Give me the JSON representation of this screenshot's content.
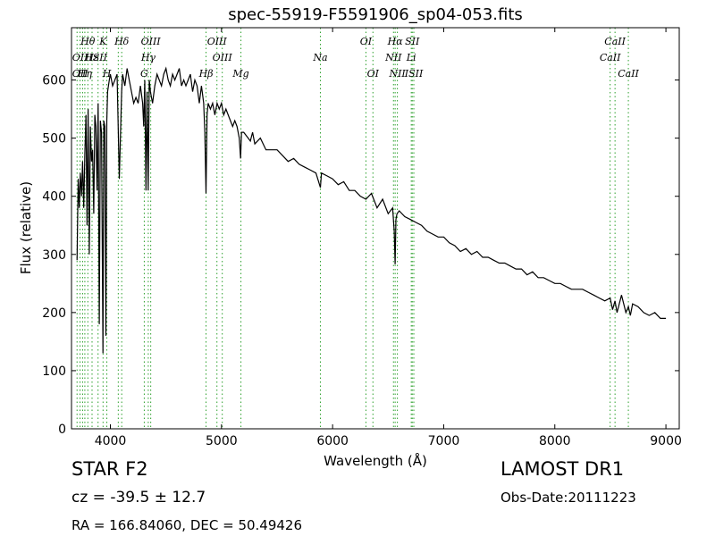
{
  "chart_data": {
    "type": "line",
    "title": "spec-55919-F5591906_sp04-053.fits",
    "xlabel": "Wavelength (Å)",
    "ylabel": "Flux (relative)",
    "xlim": [
      3650,
      9120
    ],
    "ylim": [
      0,
      690
    ],
    "xticks": [
      4000,
      5000,
      6000,
      7000,
      8000,
      9000
    ],
    "yticks": [
      0,
      100,
      200,
      300,
      400,
      500,
      600
    ],
    "grid": false,
    "series": [
      {
        "color": "#000000",
        "x": [
          3700,
          3710,
          3720,
          3730,
          3740,
          3750,
          3760,
          3770,
          3780,
          3790,
          3800,
          3810,
          3820,
          3830,
          3840,
          3850,
          3860,
          3870,
          3880,
          3890,
          3900,
          3910,
          3920,
          3933,
          3940,
          3950,
          3960,
          3968,
          3975,
          3990,
          4000,
          4020,
          4040,
          4060,
          4080,
          4101,
          4110,
          4130,
          4150,
          4170,
          4190,
          4210,
          4230,
          4250,
          4270,
          4290,
          4300,
          4310,
          4320,
          4330,
          4340,
          4350,
          4360,
          4380,
          4400,
          4420,
          4440,
          4460,
          4480,
          4500,
          4520,
          4540,
          4560,
          4580,
          4600,
          4620,
          4640,
          4660,
          4680,
          4700,
          4720,
          4740,
          4760,
          4780,
          4800,
          4820,
          4840,
          4850,
          4861,
          4870,
          4880,
          4900,
          4920,
          4940,
          4960,
          4980,
          5000,
          5020,
          5040,
          5060,
          5080,
          5100,
          5120,
          5140,
          5160,
          5172,
          5180,
          5200,
          5220,
          5240,
          5260,
          5280,
          5300,
          5350,
          5400,
          5450,
          5500,
          5550,
          5600,
          5650,
          5700,
          5750,
          5800,
          5850,
          5890,
          5900,
          5950,
          6000,
          6050,
          6100,
          6150,
          6200,
          6250,
          6300,
          6350,
          6400,
          6450,
          6500,
          6540,
          6555,
          6563,
          6570,
          6580,
          6600,
          6650,
          6700,
          6750,
          6800,
          6850,
          6900,
          6950,
          7000,
          7050,
          7100,
          7150,
          7200,
          7250,
          7300,
          7350,
          7400,
          7450,
          7500,
          7550,
          7600,
          7650,
          7700,
          7750,
          7800,
          7850,
          7900,
          7950,
          8000,
          8050,
          8100,
          8150,
          8200,
          8250,
          8300,
          8350,
          8400,
          8450,
          8498,
          8520,
          8542,
          8560,
          8600,
          8640,
          8662,
          8680,
          8700,
          8750,
          8800,
          8850,
          8900,
          8950,
          9000
        ],
        "y": [
          290,
          430,
          380,
          440,
          400,
          460,
          380,
          470,
          540,
          350,
          550,
          300,
          520,
          460,
          480,
          370,
          540,
          520,
          410,
          560,
          180,
          530,
          510,
          130,
          530,
          520,
          160,
          530,
          580,
          600,
          610,
          590,
          600,
          610,
          430,
          580,
          610,
          590,
          620,
          600,
          580,
          560,
          570,
          560,
          590,
          560,
          520,
          600,
          410,
          580,
          410,
          600,
          580,
          560,
          590,
          610,
          600,
          590,
          610,
          620,
          600,
          590,
          610,
          600,
          610,
          620,
          590,
          600,
          590,
          600,
          610,
          580,
          600,
          590,
          560,
          590,
          560,
          510,
          405,
          540,
          560,
          550,
          560,
          540,
          560,
          550,
          560,
          540,
          550,
          540,
          530,
          520,
          530,
          520,
          500,
          465,
          510,
          510,
          505,
          500,
          495,
          510,
          490,
          500,
          480,
          480,
          480,
          470,
          460,
          465,
          455,
          450,
          445,
          440,
          415,
          440,
          435,
          430,
          420,
          425,
          410,
          410,
          400,
          395,
          405,
          380,
          395,
          370,
          380,
          340,
          283,
          360,
          370,
          375,
          365,
          360,
          355,
          350,
          340,
          335,
          330,
          330,
          320,
          315,
          305,
          310,
          300,
          305,
          295,
          295,
          290,
          285,
          285,
          280,
          275,
          275,
          265,
          270,
          260,
          260,
          255,
          250,
          250,
          245,
          240,
          240,
          240,
          235,
          230,
          225,
          220,
          225,
          205,
          220,
          200,
          230,
          200,
          210,
          195,
          215,
          210,
          200,
          195,
          200,
          190,
          190
        ]
      }
    ],
    "line_labels": [
      {
        "label": "Hθ",
        "x": 3797,
        "row": 1
      },
      {
        "label": "K",
        "x": 3934,
        "row": 1
      },
      {
        "label": "Hδ",
        "x": 4102,
        "row": 1
      },
      {
        "label": "OIII",
        "x": 4363,
        "row": 1
      },
      {
        "label": "OIII",
        "x": 4959,
        "row": 1
      },
      {
        "label": "OI",
        "x": 6300,
        "row": 1
      },
      {
        "label": "Hα",
        "x": 6563,
        "row": 1
      },
      {
        "label": "SII",
        "x": 6717,
        "row": 1
      },
      {
        "label": "CaII",
        "x": 8542,
        "row": 1
      },
      {
        "label": "OII",
        "x": 3727,
        "row": 2
      },
      {
        "label": "Hε",
        "x": 3835,
        "row": 2
      },
      {
        "label": "ISII",
        "x": 3889,
        "row": 2
      },
      {
        "label": "Hγ",
        "x": 4341,
        "row": 2
      },
      {
        "label": "OIII",
        "x": 5007,
        "row": 2
      },
      {
        "label": "NII",
        "x": 6548,
        "row": 2
      },
      {
        "label": "Li",
        "x": 6708,
        "row": 2
      },
      {
        "label": "CaII",
        "x": 8498,
        "row": 2
      },
      {
        "label": "Na",
        "x": 5890,
        "row": 2
      },
      {
        "label": "OII",
        "x": 3727,
        "row": 3
      },
      {
        "label": "Hη",
        "x": 3770,
        "row": 3
      },
      {
        "label": "H",
        "x": 3968,
        "row": 3
      },
      {
        "label": "G",
        "x": 4305,
        "row": 3
      },
      {
        "label": "Hβ",
        "x": 4861,
        "row": 3
      },
      {
        "label": "Mg",
        "x": 5175,
        "row": 3
      },
      {
        "label": "OI",
        "x": 6363,
        "row": 3
      },
      {
        "label": "NII",
        "x": 6583,
        "row": 3
      },
      {
        "label": "ISII",
        "x": 6731,
        "row": 3
      },
      {
        "label": "CaII",
        "x": 8662,
        "row": 3
      }
    ],
    "line_positions": [
      3700,
      3727,
      3750,
      3770,
      3797,
      3835,
      3889,
      3934,
      3968,
      4071,
      4102,
      4305,
      4341,
      4363,
      4861,
      4959,
      5007,
      5175,
      5890,
      6300,
      6363,
      6548,
      6563,
      6583,
      6708,
      6717,
      6731,
      8498,
      8542,
      8662
    ],
    "line_color": "#2ca02c"
  },
  "info": {
    "class_label": "STAR   F2",
    "cz_label": "cz = -39.5 ± 12.7",
    "radec_label": "RA = 166.84060, DEC = 50.49426",
    "survey_label": "LAMOST DR1",
    "obs_label": "Obs-Date:20111223"
  }
}
